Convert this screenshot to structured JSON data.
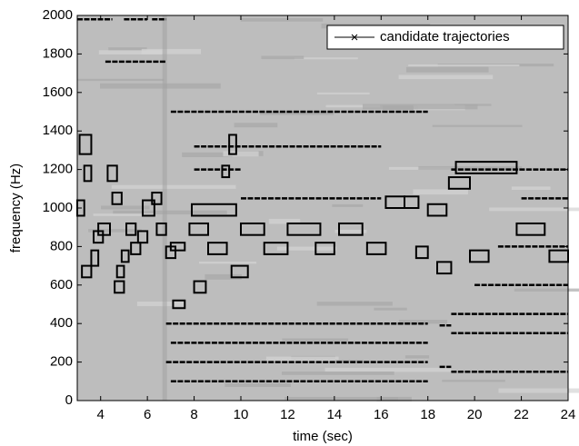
{
  "chart_data": {
    "type": "line",
    "xlabel": "time (sec)",
    "ylabel": "frequency (Hz)",
    "xlim": [
      3,
      24
    ],
    "xticks": [
      4,
      6,
      8,
      10,
      12,
      14,
      16,
      18,
      20,
      22,
      24
    ],
    "ylim": [
      0,
      2000
    ],
    "yticks": [
      0,
      200,
      400,
      600,
      800,
      1000,
      1200,
      1400,
      1600,
      1800,
      2000
    ],
    "legend": "upper right",
    "series": [
      {
        "name": "candidate trajectories",
        "color": "#000000",
        "x": [
          6.8,
          18,
          null,
          7,
          18,
          null,
          6.8,
          18,
          null,
          7,
          18,
          null,
          19,
          24,
          null,
          19,
          24,
          null,
          19,
          24,
          null,
          18.5,
          19,
          null,
          18.5,
          19,
          null,
          3,
          4.5,
          null,
          5,
          6,
          null,
          6.2,
          6.8,
          null,
          4.2,
          6.8,
          null,
          7,
          18,
          null,
          8,
          10,
          null,
          10,
          16,
          null,
          8,
          16,
          null,
          19,
          24,
          null,
          22,
          24,
          null,
          20,
          24,
          null,
          21,
          24
        ],
        "y": [
          200,
          200,
          null,
          100,
          100,
          null,
          400,
          400,
          null,
          300,
          300,
          null,
          150,
          150,
          null,
          450,
          450,
          null,
          350,
          350,
          null,
          175,
          175,
          null,
          390,
          390,
          null,
          1980,
          1980,
          null,
          1980,
          1980,
          null,
          1980,
          1980,
          null,
          1760,
          1760,
          null,
          1500,
          1500,
          null,
          1200,
          1200,
          null,
          1050,
          1050,
          null,
          1320,
          1320,
          null,
          1200,
          1200,
          null,
          1050,
          1050,
          null,
          600,
          600,
          null,
          800,
          800
        ]
      }
    ],
    "boxes": [
      [
        3.1,
        3.6,
        1280,
        1380
      ],
      [
        3.3,
        3.6,
        1140,
        1220
      ],
      [
        3.2,
        3.6,
        640,
        700
      ],
      [
        3,
        3.3,
        960,
        1040
      ],
      [
        3.6,
        3.9,
        700,
        780
      ],
      [
        3.7,
        4.1,
        820,
        880
      ],
      [
        3.9,
        4.4,
        860,
        920
      ],
      [
        4.3,
        4.7,
        1140,
        1220
      ],
      [
        4.5,
        4.9,
        1020,
        1080
      ],
      [
        4.6,
        5,
        560,
        620
      ],
      [
        4.7,
        5,
        640,
        700
      ],
      [
        4.9,
        5.2,
        720,
        780
      ],
      [
        5.1,
        5.5,
        860,
        920
      ],
      [
        5.3,
        5.7,
        760,
        820
      ],
      [
        5.6,
        6,
        820,
        880
      ],
      [
        5.8,
        6.3,
        960,
        1040
      ],
      [
        6.2,
        6.6,
        1020,
        1080
      ],
      [
        6.4,
        6.8,
        860,
        920
      ],
      [
        6.8,
        7.2,
        740,
        800
      ],
      [
        7,
        7.6,
        780,
        820
      ],
      [
        7.1,
        7.6,
        480,
        520
      ],
      [
        7.9,
        9.8,
        960,
        1020
      ],
      [
        7.8,
        8.6,
        860,
        920
      ],
      [
        8,
        8.5,
        560,
        620
      ],
      [
        8.6,
        9.4,
        760,
        820
      ],
      [
        9.2,
        9.5,
        1160,
        1220
      ],
      [
        9.5,
        9.8,
        1280,
        1380
      ],
      [
        9.6,
        10.3,
        640,
        700
      ],
      [
        10,
        11,
        860,
        920
      ],
      [
        11,
        12,
        760,
        820
      ],
      [
        12,
        13.4,
        860,
        920
      ],
      [
        13.2,
        14,
        760,
        820
      ],
      [
        14.2,
        15.2,
        860,
        920
      ],
      [
        15.4,
        16.2,
        760,
        820
      ],
      [
        16.2,
        17,
        1000,
        1060
      ],
      [
        17,
        17.6,
        1000,
        1060
      ],
      [
        17.5,
        18,
        740,
        800
      ],
      [
        18,
        18.8,
        960,
        1020
      ],
      [
        18.4,
        19,
        660,
        720
      ],
      [
        18.9,
        19.8,
        1100,
        1160
      ],
      [
        19.2,
        21.8,
        1180,
        1240
      ],
      [
        19.8,
        20.6,
        720,
        780
      ],
      [
        21.8,
        23,
        860,
        920
      ],
      [
        23.2,
        24,
        720,
        780
      ]
    ]
  }
}
